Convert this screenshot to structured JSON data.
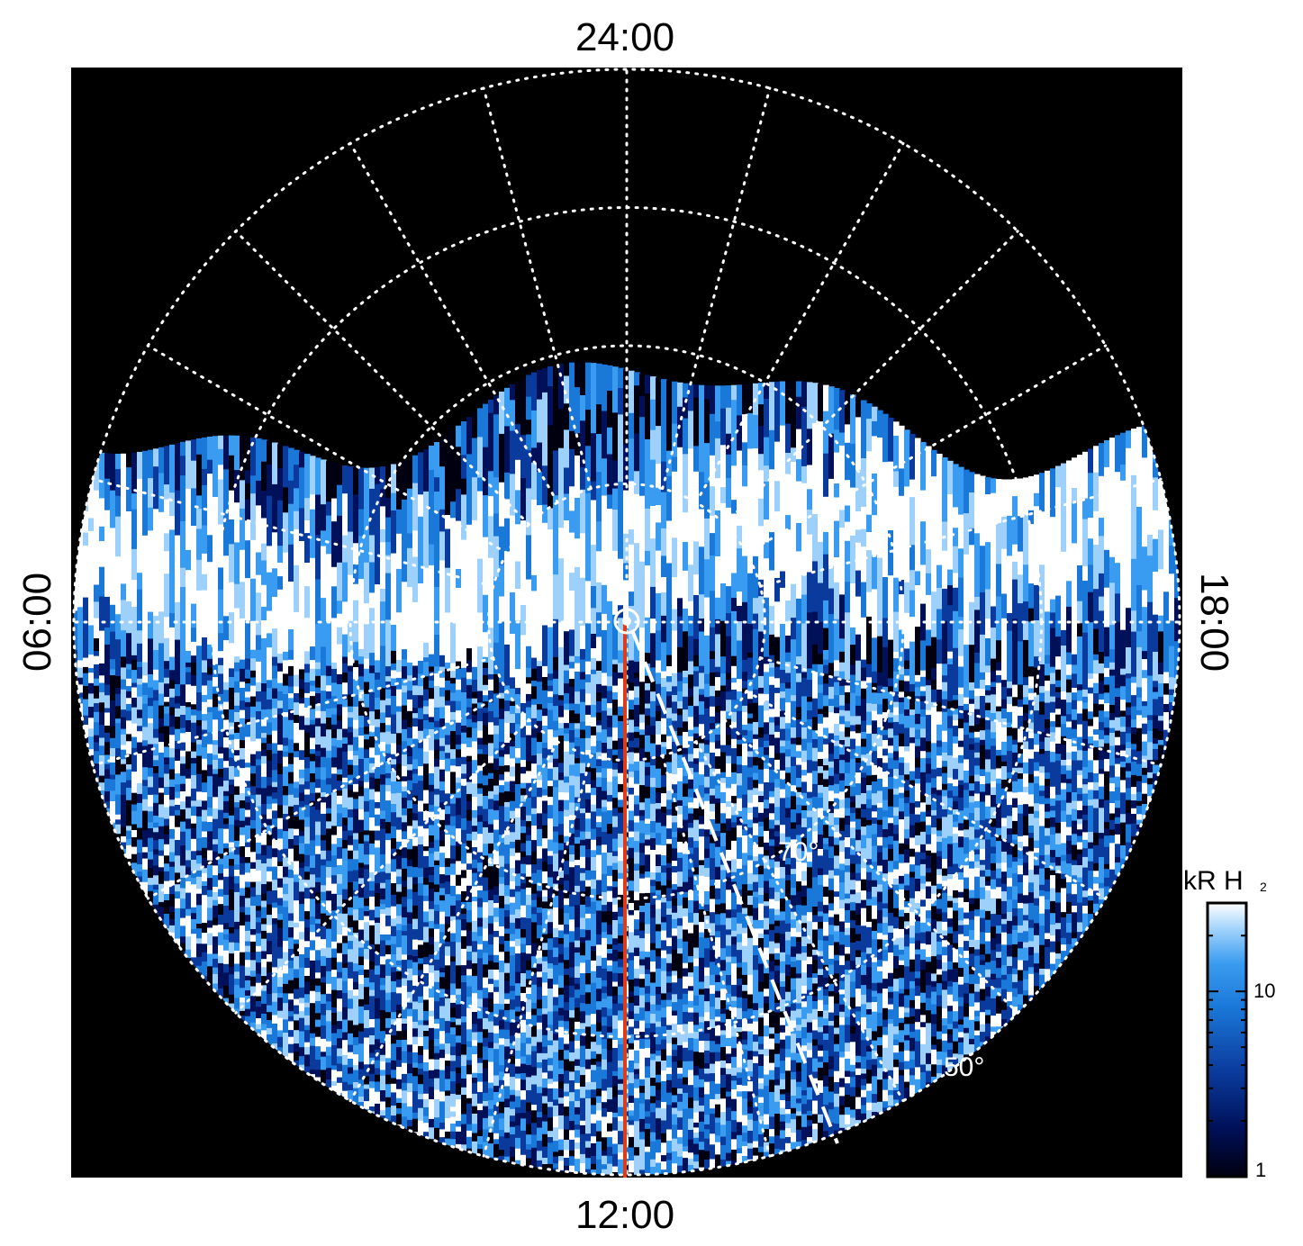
{
  "chart_data": {
    "type": "heatmap",
    "projection": "polar",
    "description_units": "kR H2",
    "local_time_labels": {
      "top": "24:00",
      "bottom": "12:00",
      "left": "06:00",
      "right": "18:00"
    },
    "latitude_labels": [
      {
        "text": "70°",
        "latitude": 70
      },
      {
        "text": "50°",
        "latitude": 50
      }
    ],
    "grid": {
      "latitude_circles": [
        80,
        70,
        60,
        50
      ],
      "meridian_step_hours": 1,
      "style": "dotted",
      "color": "#ffffff"
    },
    "coverage": "partial disk, north edge of observed emission near 24:00 side",
    "track_line": {
      "color": "#e03a16",
      "from_local_time": "pole",
      "to_local_time": "12:00"
    },
    "track_dashed": {
      "color": "#ffffff",
      "direction": "toward 13:00 meridian"
    },
    "colorbar": {
      "title": "kR H",
      "title_subscript": "2",
      "scale": "log",
      "range": [
        1,
        30
      ],
      "ticks": [
        {
          "value": 1,
          "label": "1"
        },
        {
          "value": 10,
          "label": "10"
        }
      ],
      "colors": [
        "#000010",
        "#00115a",
        "#0a3a9c",
        "#1a78d8",
        "#3a9cf0",
        "#9dd1fb",
        "#ffffff"
      ]
    },
    "background": "#000000"
  }
}
